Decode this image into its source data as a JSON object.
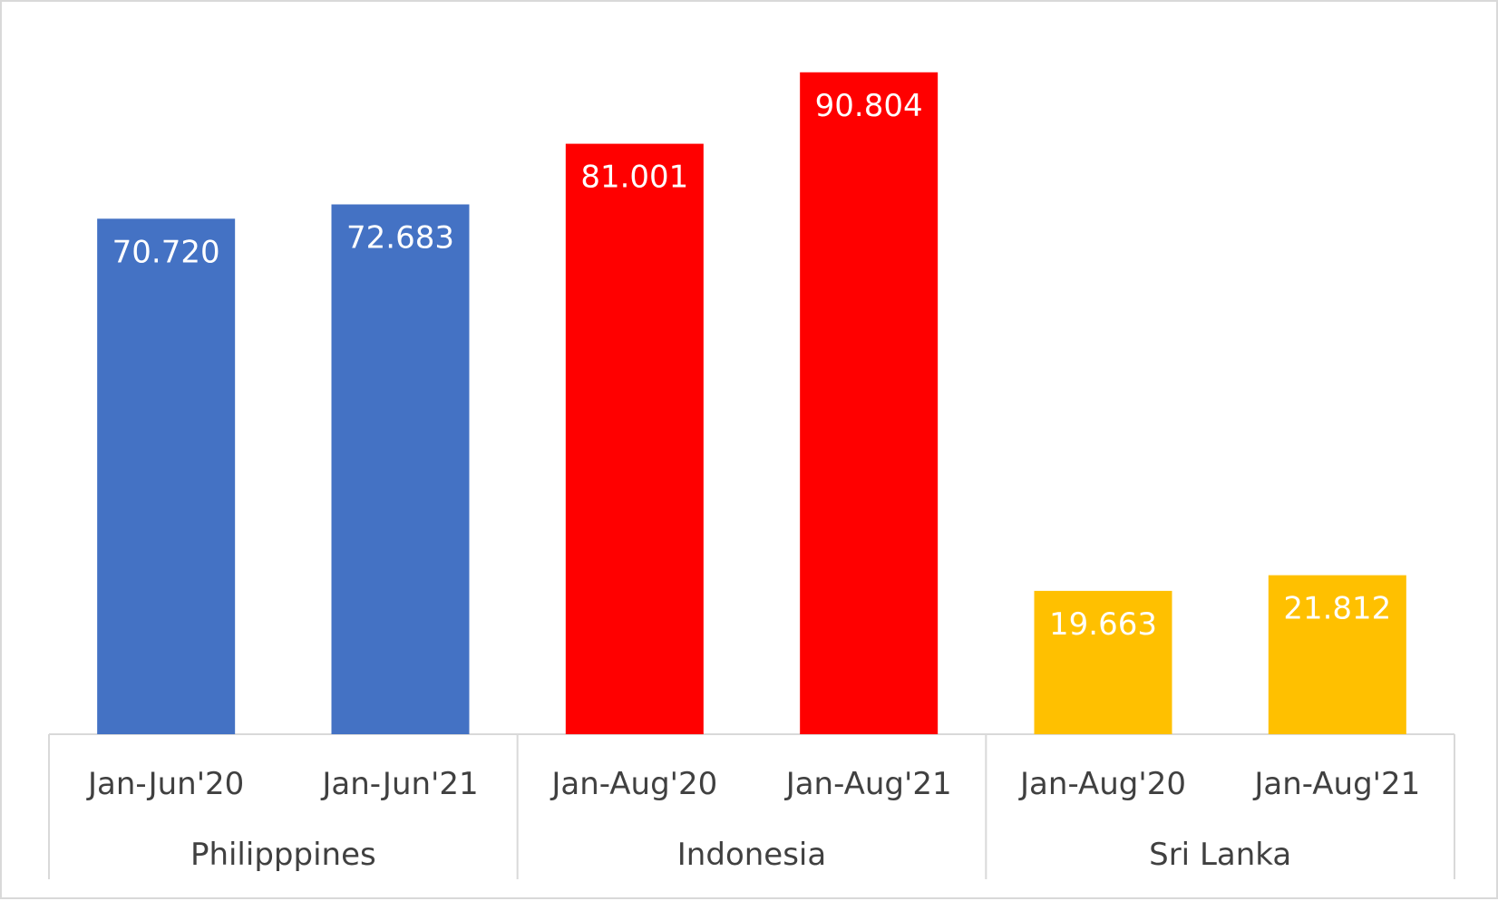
{
  "chart_data": {
    "type": "bar",
    "title": "",
    "xlabel": "",
    "ylabel": "",
    "ylim": [
      0,
      95.5
    ],
    "grid": false,
    "legend": "none",
    "groups": [
      {
        "label": "Philipppines",
        "color": "#4472C4",
        "categories": [
          "Jan-Jun'20",
          "Jan-Jun'21"
        ],
        "values": [
          70.72,
          72.683
        ],
        "value_labels": [
          "70.720",
          "72.683"
        ]
      },
      {
        "label": "Indonesia",
        "color": "#FF0000",
        "categories": [
          "Jan-Aug'20",
          "Jan-Aug'21"
        ],
        "values": [
          81.001,
          90.804
        ],
        "value_labels": [
          "81.001",
          "90.804"
        ]
      },
      {
        "label": "Sri Lanka",
        "color": "#FFC000",
        "categories": [
          "Jan-Aug'20",
          "Jan-Aug'21"
        ],
        "values": [
          19.663,
          21.812
        ],
        "value_labels": [
          "19.663",
          "21.812"
        ]
      }
    ]
  }
}
